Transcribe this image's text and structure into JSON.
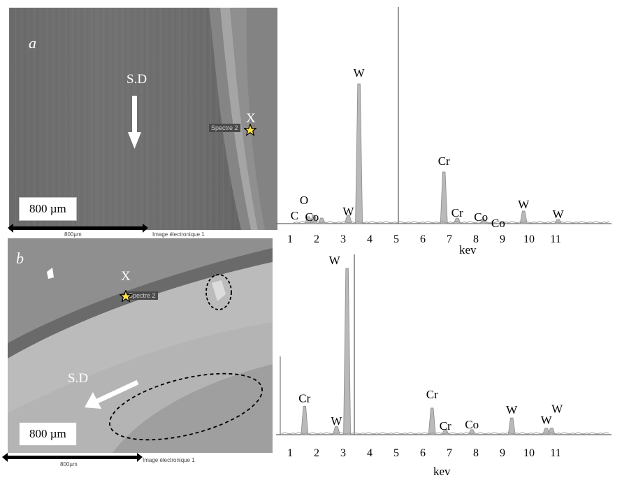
{
  "panel_a": {
    "letter": "a",
    "sd_label": "S.D",
    "marker_label": "X",
    "spectrum_tag": "Spectre 2",
    "scale": "800 µm",
    "caption_left": "800µm",
    "caption_right": "Image électronique 1"
  },
  "panel_b": {
    "letter": "b",
    "sd_label": "S.D",
    "marker_label": "X",
    "spectrum_tag": "Spectre 2",
    "scale": "800 µm",
    "caption_left": "800µm",
    "caption_right": "Image électronique 1"
  },
  "spectrum_a": {
    "xlabel": "kev",
    "ticks": [
      "1",
      "2",
      "3",
      "4",
      "5",
      "6",
      "7",
      "8",
      "9",
      "10",
      "11"
    ],
    "peaks": [
      {
        "label": "C",
        "energy": 0.3,
        "height": 0.05
      },
      {
        "label": "O",
        "energy": 0.5,
        "height": 0.06
      },
      {
        "label": "Co",
        "energy": 0.8,
        "height": 0.04
      },
      {
        "label": "W",
        "energy": 1.8,
        "height": 0.06
      },
      {
        "label": "W",
        "energy": 2.2,
        "height": 1.0
      },
      {
        "label": "Cr",
        "energy": 5.4,
        "height": 0.37
      },
      {
        "label": "Cr",
        "energy": 5.9,
        "height": 0.04
      },
      {
        "label": "Co",
        "energy": 6.9,
        "height": 0.03
      },
      {
        "label": "Co",
        "energy": 7.6,
        "height": 0.01
      },
      {
        "label": "W",
        "energy": 8.4,
        "height": 0.09
      },
      {
        "label": "W",
        "energy": 9.7,
        "height": 0.03
      }
    ]
  },
  "spectrum_b": {
    "xlabel": "kev",
    "ticks": [
      "1",
      "2",
      "3",
      "4",
      "5",
      "6",
      "7",
      "8",
      "9",
      "10",
      "11"
    ],
    "peaks": [
      {
        "label": "Cr",
        "energy": 0.6,
        "height": 0.17
      },
      {
        "label": "W",
        "energy": 1.8,
        "height": 0.05
      },
      {
        "label": "W",
        "energy": 2.2,
        "height": 1.0
      },
      {
        "label": "Cr",
        "energy": 5.4,
        "height": 0.16
      },
      {
        "label": "Cr",
        "energy": 5.9,
        "height": 0.03
      },
      {
        "label": "Co",
        "energy": 6.9,
        "height": 0.03
      },
      {
        "label": "W",
        "energy": 8.4,
        "height": 0.1
      },
      {
        "label": "W",
        "energy": 9.7,
        "height": 0.04
      },
      {
        "label": "W",
        "energy": 9.9,
        "height": 0.04
      }
    ]
  }
}
